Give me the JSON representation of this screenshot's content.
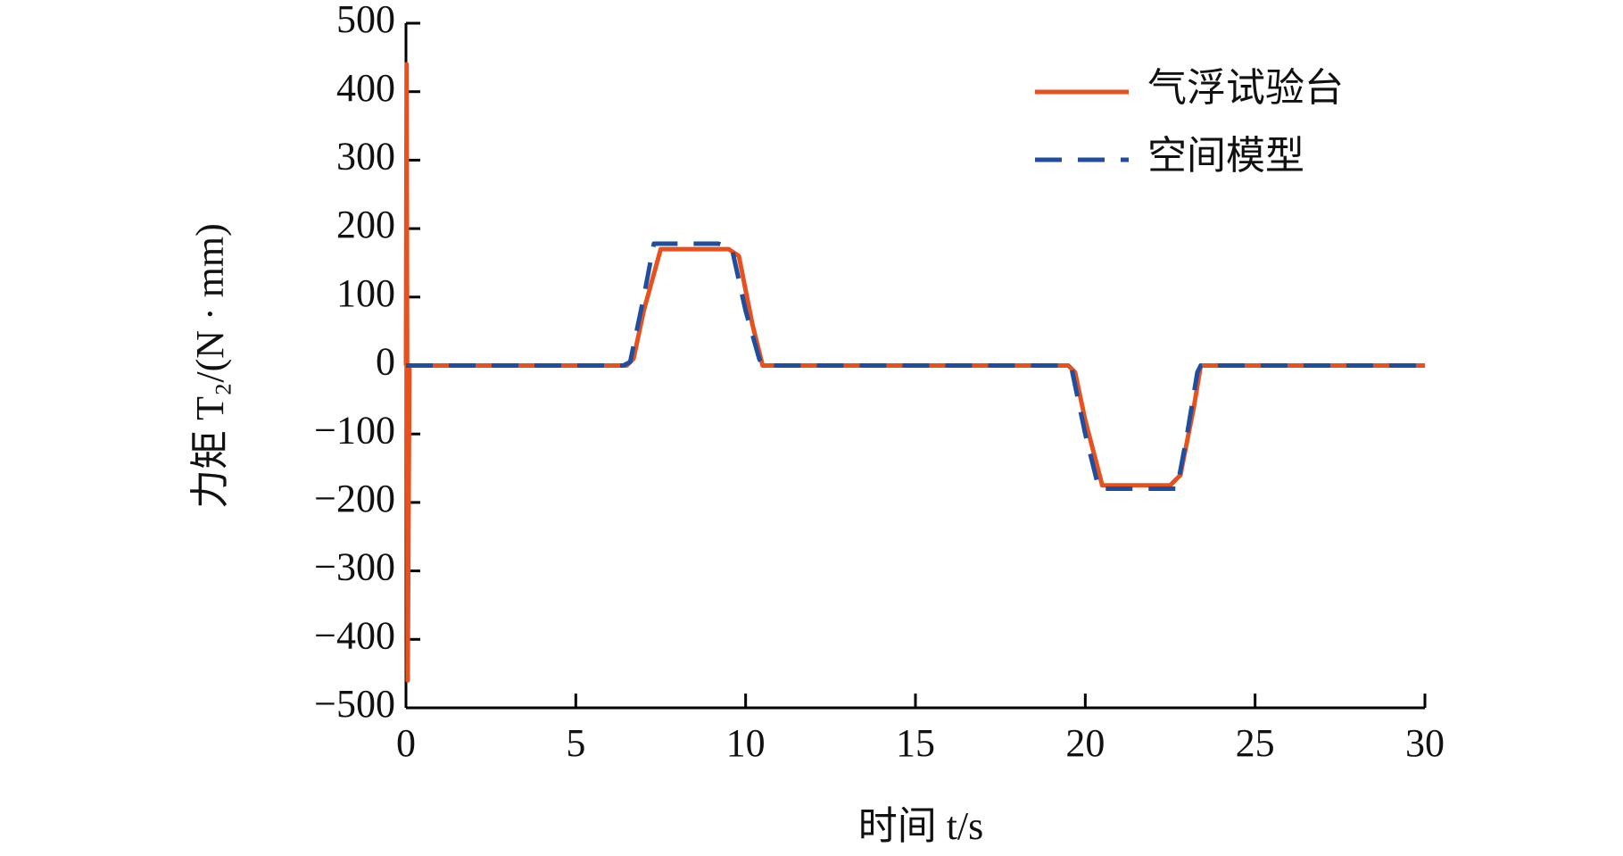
{
  "chart_data": {
    "type": "line",
    "xlabel": "时间 t/s",
    "ylabel": "力矩 T₂/(N · mm)",
    "xlim": [
      0,
      30
    ],
    "xticks": [
      0,
      5,
      10,
      15,
      20,
      25,
      30
    ],
    "ylim": [
      -500,
      500
    ],
    "yticks": [
      {
        "value": -500,
        "label": "−500"
      },
      {
        "value": -400,
        "label": "−400"
      },
      {
        "value": -300,
        "label": "−300"
      },
      {
        "value": -200,
        "label": "−200"
      },
      {
        "value": -100,
        "label": "−100"
      },
      0,
      100,
      200,
      300,
      400,
      500
    ],
    "legend": "upper right",
    "series": [
      {
        "name": "气浮试验台",
        "color": "#e8501e",
        "dash": false,
        "x": [
          0,
          0.02,
          0.05,
          0.1,
          6.5,
          6.7,
          7.0,
          7.5,
          9.5,
          9.8,
          10.2,
          10.5,
          19.5,
          19.7,
          20.0,
          20.5,
          22.5,
          22.8,
          23.2,
          23.4,
          30
        ],
        "values": [
          0,
          440,
          -460,
          0,
          0,
          10,
          80,
          170,
          170,
          160,
          60,
          0,
          0,
          -10,
          -80,
          -175,
          -175,
          -160,
          -60,
          0,
          0
        ]
      },
      {
        "name": "空间模型",
        "color": "#1f4e9e",
        "dash": true,
        "x": [
          0,
          6.4,
          6.6,
          7.0,
          7.3,
          9.2,
          9.6,
          10.0,
          10.4,
          10.5,
          19.4,
          19.6,
          20.0,
          20.4,
          22.7,
          23.0,
          23.3,
          23.4,
          30
        ],
        "values": [
          0,
          0,
          5,
          100,
          178,
          178,
          170,
          80,
          10,
          0,
          0,
          -5,
          -100,
          -180,
          -180,
          -100,
          -10,
          0,
          0
        ]
      }
    ]
  }
}
